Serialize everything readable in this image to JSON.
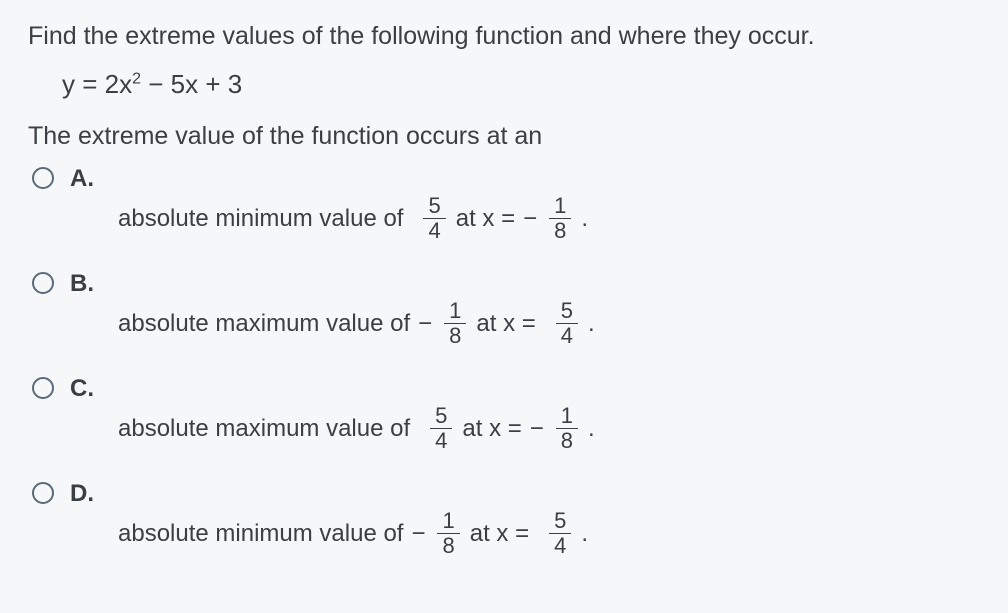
{
  "question": "Find the extreme values of the following function and where they occur.",
  "equation_prefix": "y = 2x",
  "equation_exp": "2",
  "equation_suffix": " − 5x + 3",
  "prompt": "The extreme value of the function occurs at an",
  "options": [
    {
      "letter": "A.",
      "lead": "absolute minimum value of ",
      "val_sign": "",
      "val_num": "5",
      "val_den": "4",
      "at": " at x = ",
      "x_sign": "− ",
      "x_num": "1",
      "x_den": "8",
      "period": "."
    },
    {
      "letter": "B.",
      "lead": "absolute maximum value of ",
      "val_sign": "− ",
      "val_num": "1",
      "val_den": "8",
      "at": " at x = ",
      "x_sign": "",
      "x_num": "5",
      "x_den": "4",
      "period": "."
    },
    {
      "letter": "C.",
      "lead": "absolute maximum value of ",
      "val_sign": "",
      "val_num": "5",
      "val_den": "4",
      "at": " at x = ",
      "x_sign": "− ",
      "x_num": "1",
      "x_den": "8",
      "period": "."
    },
    {
      "letter": "D.",
      "lead": "absolute minimum value of ",
      "val_sign": "− ",
      "val_num": "1",
      "val_den": "8",
      "at": " at x = ",
      "x_sign": "",
      "x_num": "5",
      "x_den": "4",
      "period": "."
    }
  ]
}
